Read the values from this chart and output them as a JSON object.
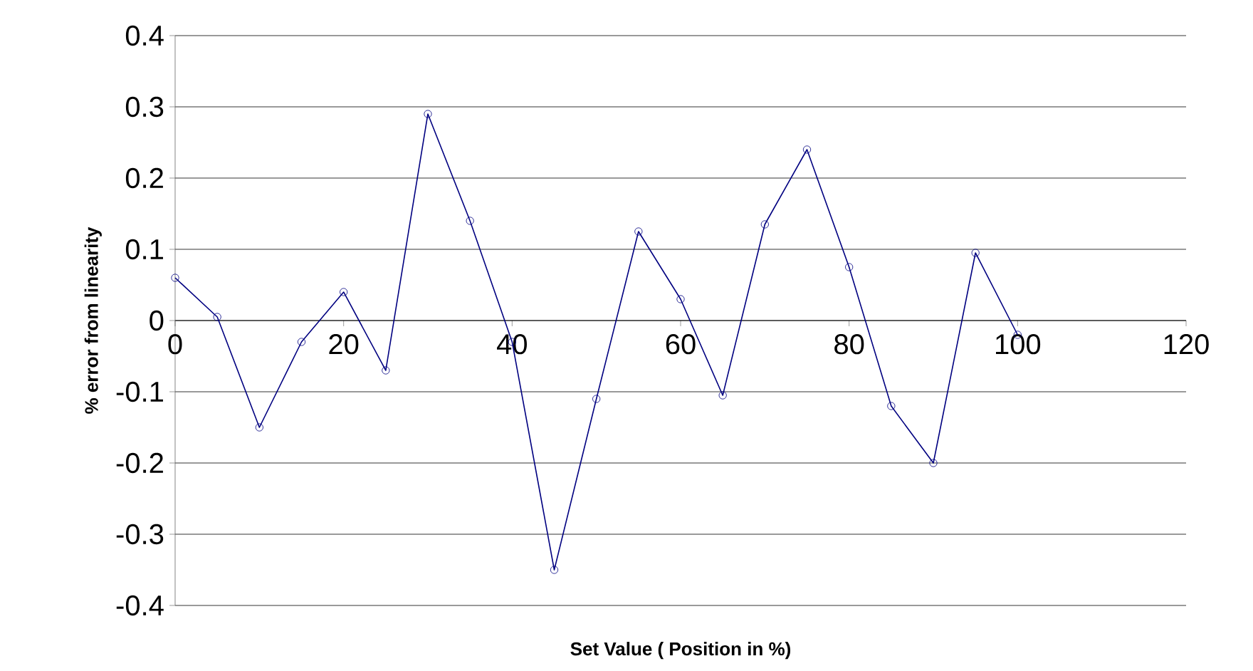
{
  "chart_data": {
    "type": "line",
    "xlabel": "Set Value ( Position in %)",
    "ylabel": "% error from linearity",
    "x": [
      0,
      5,
      10,
      15,
      20,
      25,
      30,
      35,
      40,
      45,
      50,
      55,
      60,
      65,
      70,
      75,
      80,
      85,
      90,
      95,
      100
    ],
    "series": [
      {
        "color": "#000080",
        "values": [
          0.06,
          0.005,
          -0.15,
          -0.03,
          0.04,
          -0.07,
          0.29,
          0.14,
          -0.03,
          -0.35,
          -0.11,
          0.125,
          0.03,
          -0.105,
          0.135,
          0.24,
          0.075,
          -0.12,
          -0.2,
          0.095,
          -0.02
        ]
      }
    ],
    "xlim": [
      0,
      120
    ],
    "xticks": [
      0,
      20,
      40,
      60,
      80,
      100,
      120
    ],
    "ylim": [
      -0.4,
      0.4
    ],
    "yticks": [
      -0.4,
      -0.3,
      -0.2,
      -0.1,
      0,
      0.1,
      0.2,
      0.3,
      0.4
    ],
    "grid": "y",
    "marker": "circle",
    "line_style": "solid"
  }
}
